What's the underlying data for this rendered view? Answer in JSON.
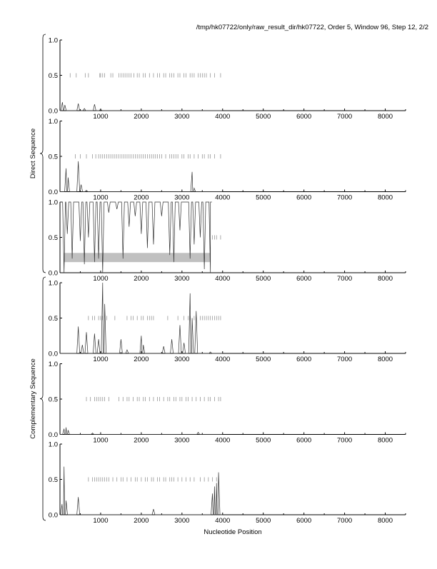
{
  "header": "/tmp/hk07722/only/raw_result_dir/hk07722, Order 5, Window 96, Step 12, 2/2",
  "chart_data": {
    "type": "line",
    "xlabel": "Nucleotide Position",
    "xlim": [
      0,
      8500
    ],
    "ylim": [
      0,
      1
    ],
    "xticks": [
      1000,
      2000,
      3000,
      4000,
      5000,
      6000,
      7000,
      8000
    ],
    "yticks": [
      "0.0",
      "0.5",
      "1.0"
    ],
    "groups": [
      {
        "label": "Direct Sequence",
        "panels": [
          0,
          1,
          2
        ]
      },
      {
        "label": "Complementary Sequence",
        "panels": [
          3,
          4,
          5
        ]
      }
    ],
    "panels": [
      {
        "baseline": 0,
        "peaks": [
          [
            60,
            0.12
          ],
          [
            120,
            0.08
          ],
          [
            450,
            0.1
          ],
          [
            600,
            0.03
          ],
          [
            850,
            0.09
          ],
          [
            1000,
            0.02
          ]
        ],
        "marks": [
          250,
          400,
          620,
          700,
          980,
          1000,
          1050,
          1100,
          1250,
          1300,
          1450,
          1500,
          1550,
          1600,
          1650,
          1700,
          1750,
          1820,
          1900,
          1950,
          2050,
          2100,
          2200,
          2300,
          2400,
          2450,
          2550,
          2600,
          2700,
          2750,
          2800,
          2900,
          2950,
          3050,
          3100,
          3200,
          3250,
          3300,
          3400,
          3450,
          3500,
          3550,
          3600,
          3700,
          3800,
          3950
        ]
      },
      {
        "baseline": 0,
        "peaks": [
          [
            150,
            0.33
          ],
          [
            200,
            0.2
          ],
          [
            450,
            0.43
          ],
          [
            520,
            0.1
          ],
          [
            650,
            0.02
          ],
          [
            3250,
            0.28
          ],
          [
            3300,
            0.05
          ]
        ],
        "marks": [
          380,
          500,
          650,
          800,
          880,
          950,
          1000,
          1050,
          1100,
          1150,
          1200,
          1250,
          1300,
          1350,
          1400,
          1450,
          1500,
          1550,
          1600,
          1650,
          1700,
          1750,
          1800,
          1850,
          1900,
          1950,
          2000,
          2050,
          2100,
          2150,
          2200,
          2250,
          2300,
          2350,
          2400,
          2450,
          2500,
          2600,
          2700,
          2750,
          2800,
          2850,
          2900,
          3000,
          3050,
          3150,
          3200,
          3300,
          3400,
          3500,
          3550,
          3650,
          3700,
          3800,
          3950
        ]
      },
      {
        "baseline": 1,
        "band": [
          100,
          3700,
          0.15,
          0.28
        ],
        "peaks": [
          [
            100,
            0.0
          ],
          [
            180,
            0.55
          ],
          [
            300,
            0.2
          ],
          [
            500,
            0.45
          ],
          [
            600,
            0.12
          ],
          [
            700,
            0.5
          ],
          [
            850,
            0.15
          ],
          [
            950,
            0.2
          ],
          [
            1050,
            0.0
          ],
          [
            1200,
            0.85
          ],
          [
            1400,
            0.9
          ],
          [
            1550,
            0.2
          ],
          [
            1700,
            0.65
          ],
          [
            1850,
            0.8
          ],
          [
            2000,
            0.55
          ],
          [
            2150,
            0.35
          ],
          [
            2300,
            0.4
          ],
          [
            2500,
            0.8
          ],
          [
            2700,
            0.25
          ],
          [
            2800,
            0.15
          ],
          [
            2950,
            0.6
          ],
          [
            3200,
            0.2
          ],
          [
            3300,
            0.4
          ],
          [
            3450,
            0.5
          ],
          [
            3550,
            0.05
          ],
          [
            3700,
            0.0
          ]
        ],
        "marks": [
          3750,
          3800,
          3850,
          3950
        ]
      },
      {
        "baseline": 0,
        "peaks": [
          [
            450,
            0.38
          ],
          [
            550,
            0.12
          ],
          [
            650,
            0.3
          ],
          [
            850,
            0.28
          ],
          [
            950,
            0.2
          ],
          [
            1050,
            1.0
          ],
          [
            1100,
            0.7
          ],
          [
            1500,
            0.2
          ],
          [
            1650,
            0.05
          ],
          [
            2000,
            0.25
          ],
          [
            2050,
            0.12
          ],
          [
            2550,
            0.1
          ],
          [
            2750,
            0.2
          ],
          [
            2950,
            0.4
          ],
          [
            3050,
            0.15
          ],
          [
            3200,
            0.85
          ],
          [
            3250,
            0.5
          ],
          [
            3350,
            0.6
          ],
          [
            3700,
            0.02
          ]
        ],
        "marks": [
          700,
          800,
          850,
          950,
          1000,
          1050,
          1150,
          1350,
          1650,
          1750,
          1800,
          1900,
          2000,
          2050,
          2150,
          2200,
          2250,
          2300,
          2650,
          2900,
          3050,
          3150,
          3200,
          3300,
          3450,
          3500,
          3550,
          3600,
          3650,
          3700,
          3750,
          3800,
          3850,
          3900,
          3950
        ]
      },
      {
        "baseline": 0,
        "peaks": [
          [
            100,
            0.08
          ],
          [
            150,
            0.1
          ],
          [
            200,
            0.06
          ],
          [
            800,
            0.02
          ],
          [
            3400,
            0.03
          ]
        ],
        "marks": [
          650,
          750,
          850,
          900,
          950,
          1000,
          1050,
          1100,
          1200,
          1450,
          1550,
          1650,
          1700,
          1800,
          1900,
          1950,
          2050,
          2100,
          2200,
          2300,
          2400,
          2450,
          2550,
          2650,
          2700,
          2800,
          2850,
          2950,
          3000,
          3100,
          3150,
          3250,
          3350,
          3450,
          3550,
          3650,
          3700,
          3800,
          3900,
          3950
        ]
      },
      {
        "baseline": 0,
        "peaks": [
          [
            50,
            0.15
          ],
          [
            100,
            0.68
          ],
          [
            150,
            0.2
          ],
          [
            450,
            0.25
          ],
          [
            2300,
            0.08
          ],
          [
            3750,
            0.3
          ],
          [
            3800,
            0.4
          ],
          [
            3850,
            0.45
          ],
          [
            3900,
            0.6
          ]
        ],
        "marks": [
          700,
          800,
          850,
          900,
          950,
          1000,
          1050,
          1100,
          1150,
          1200,
          1300,
          1400,
          1500,
          1550,
          1650,
          1750,
          1850,
          1900,
          2000,
          2100,
          2150,
          2250,
          2300,
          2400,
          2450,
          2550,
          2600,
          2700,
          2750,
          2800,
          2900,
          3000,
          3100,
          3200,
          3300,
          3450,
          3550,
          3650,
          3750,
          3850
        ]
      }
    ]
  }
}
